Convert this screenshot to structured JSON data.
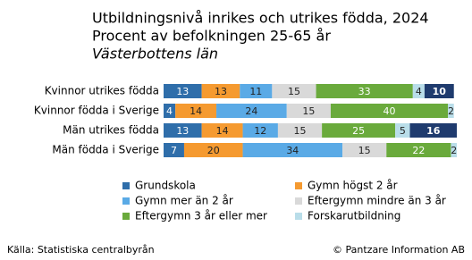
{
  "chart_data": {
    "type": "stacked-bar-horizontal",
    "title": "Utbildningsnivå inrikes och utrikes födda, 2024",
    "subtitle": "Procent av befolkningen 25-65 år",
    "region": "Västerbottens län",
    "categories": [
      "Kvinnor utrikes födda",
      "Kvinnor födda i Sverige",
      "Män utrikes födda",
      "Män födda i Sverige"
    ],
    "xlim": [
      0,
      100
    ],
    "series": [
      {
        "name": "Grundskola",
        "color": "#2f6eaa",
        "values": [
          13,
          4,
          13,
          7
        ]
      },
      {
        "name": "Gymn högst 2 år",
        "color": "#f59a30",
        "values": [
          13,
          14,
          14,
          20
        ]
      },
      {
        "name": "Gymn mer än 2 år",
        "color": "#5aaae6",
        "values": [
          11,
          24,
          12,
          34
        ]
      },
      {
        "name": "Eftergymn mindre än 3 år",
        "color": "#d9d9d9",
        "values": [
          15,
          15,
          15,
          15
        ]
      },
      {
        "name": "Eftergymn 3 år eller mer",
        "color": "#6aaa3c",
        "values": [
          33,
          40,
          25,
          22
        ]
      },
      {
        "name": "Forskarutbildning",
        "color": "#b9dde9",
        "values": [
          4,
          2,
          5,
          2
        ]
      },
      {
        "name": null,
        "color": "#1f3b6e",
        "values": [
          10,
          null,
          16,
          null
        ]
      }
    ],
    "source": "Källa: Statistiska centralbyrån",
    "copyright": "© Pantzare Information AB"
  }
}
